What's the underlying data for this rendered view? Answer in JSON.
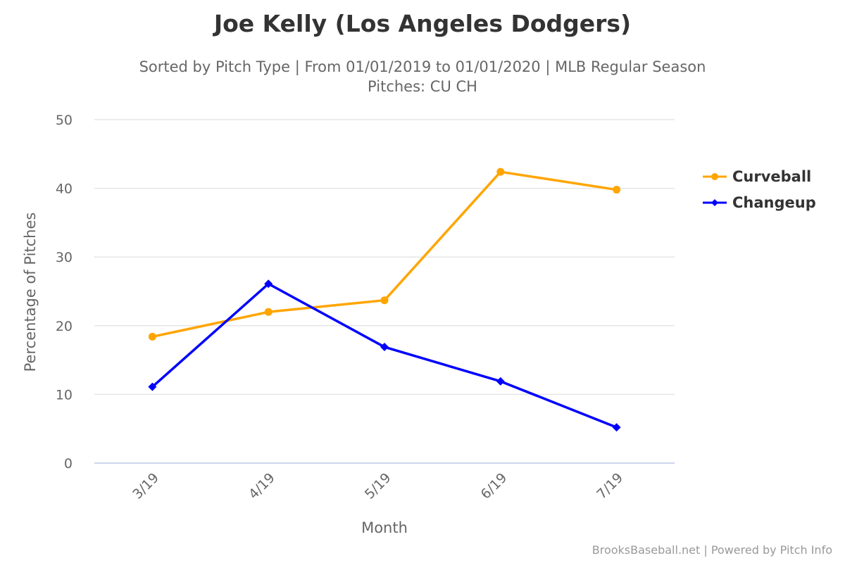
{
  "chart_data": {
    "type": "line",
    "title": "Joe Kelly (Los Angeles Dodgers)",
    "subtitle": "Sorted by Pitch Type | From 01/01/2019 to 01/01/2020 | MLB Regular Season",
    "subtitle2": "Pitches: CU CH",
    "xlabel": "Month",
    "ylabel": "Percentage of Pitches",
    "categories": [
      "3/19",
      "4/19",
      "5/19",
      "6/19",
      "7/19"
    ],
    "ylim": [
      0,
      50
    ],
    "yticks": [
      "0",
      "10",
      "20",
      "30",
      "40",
      "50"
    ],
    "grid": true,
    "legend_position": "right",
    "series": [
      {
        "name": "Curveball",
        "color": "#ffa500",
        "marker": "circle",
        "values": [
          18.4,
          22.0,
          23.7,
          42.4,
          39.8
        ]
      },
      {
        "name": "Changeup",
        "color": "#0000ff",
        "marker": "diamond",
        "values": [
          11.1,
          26.1,
          16.9,
          11.9,
          5.2
        ]
      }
    ],
    "credits": "BrooksBaseball.net | Powered by Pitch Info"
  }
}
